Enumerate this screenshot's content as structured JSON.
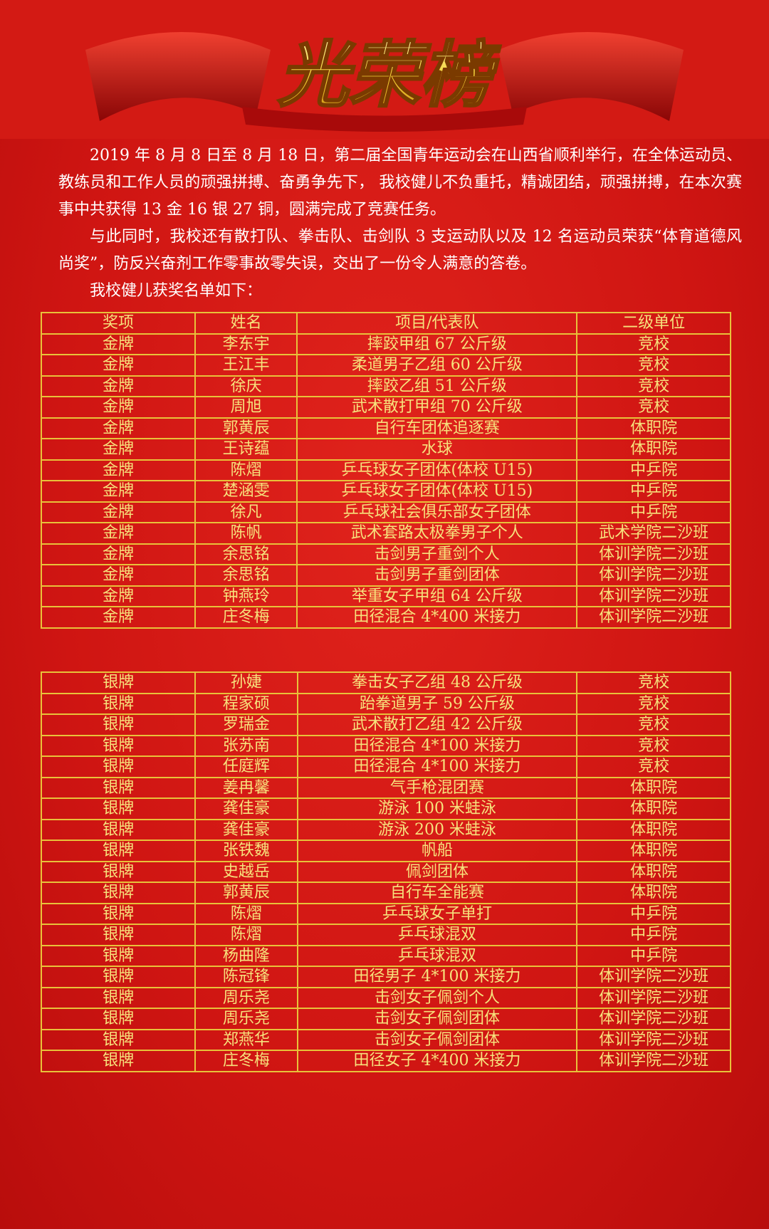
{
  "header": {
    "title": "光荣榜"
  },
  "intro": {
    "paragraphs": [
      "2019 年 8 月 8 日至 8 月 18 日，第二届全国青年运动会在山西省顺利举行，在全体运动员、教练员和工作人员的顽强拼搏、奋勇争先下， 我校健儿不负重托，精诚团结，顽强拼搏，在本次赛事中共获得 13 金 16 银 27 铜，圆满完成了竞赛任务。",
      "与此同时，我校还有散打队、拳击队、击剑队 3 支运动队以及 12 名运动员荣获“体育道德风尚奖”，防反兴奋剂工作零事故零失误，交出了一份令人满意的答卷。",
      "我校健儿获奖名单如下："
    ]
  },
  "gold_table": {
    "columns": [
      "奖项",
      "姓名",
      "项目/代表队",
      "二级单位"
    ],
    "rows": [
      [
        "金牌",
        "李东宇",
        "摔跤甲组 67 公斤级",
        "竞校"
      ],
      [
        "金牌",
        "王江丰",
        "柔道男子乙组 60 公斤级",
        "竞校"
      ],
      [
        "金牌",
        "徐庆",
        "摔跤乙组 51 公斤级",
        "竞校"
      ],
      [
        "金牌",
        "周旭",
        "武术散打甲组 70 公斤级",
        "竞校"
      ],
      [
        "金牌",
        "郭黄辰",
        "自行车团体追逐赛",
        "体职院"
      ],
      [
        "金牌",
        "王诗蕴",
        "水球",
        "体职院"
      ],
      [
        "金牌",
        "陈熠",
        "乒乓球女子团体(体校 U15)",
        "中乒院"
      ],
      [
        "金牌",
        "楚涵雯",
        "乒乓球女子团体(体校 U15)",
        "中乒院"
      ],
      [
        "金牌",
        "徐凡",
        "乒乓球社会俱乐部女子团体",
        "中乒院"
      ],
      [
        "金牌",
        "陈帆",
        "武术套路太极拳男子个人",
        "武术学院二沙班"
      ],
      [
        "金牌",
        "余思铭",
        "击剑男子重剑个人",
        "体训学院二沙班"
      ],
      [
        "金牌",
        "余思铭",
        "击剑男子重剑团体",
        "体训学院二沙班"
      ],
      [
        "金牌",
        "钟燕玲",
        "举重女子甲组 64 公斤级",
        "体训学院二沙班"
      ],
      [
        "金牌",
        "庄冬梅",
        "田径混合 4*400 米接力",
        "体训学院二沙班"
      ]
    ]
  },
  "silver_table": {
    "rows": [
      [
        "银牌",
        "孙婕",
        "拳击女子乙组 48 公斤级",
        "竞校"
      ],
      [
        "银牌",
        "程家硕",
        "跆拳道男子 59 公斤级",
        "竞校"
      ],
      [
        "银牌",
        "罗瑞金",
        "武术散打乙组 42 公斤级",
        "竞校"
      ],
      [
        "银牌",
        "张苏南",
        "田径混合 4*100 米接力",
        "竞校"
      ],
      [
        "银牌",
        "任庭辉",
        "田径混合 4*100 米接力",
        "竞校"
      ],
      [
        "银牌",
        "姜冉馨",
        "气手枪混团赛",
        "体职院"
      ],
      [
        "银牌",
        "龚佳豪",
        "游泳 100 米蛙泳",
        "体职院"
      ],
      [
        "银牌",
        "龚佳豪",
        "游泳 200 米蛙泳",
        "体职院"
      ],
      [
        "银牌",
        "张铁魏",
        "帆船",
        "体职院"
      ],
      [
        "银牌",
        "史越岳",
        "佩剑团体",
        "体职院"
      ],
      [
        "银牌",
        "郭黄辰",
        "自行车全能赛",
        "体职院"
      ],
      [
        "银牌",
        "陈熠",
        "乒乓球女子单打",
        "中乒院"
      ],
      [
        "银牌",
        "陈熠",
        "乒乓球混双",
        "中乒院"
      ],
      [
        "银牌",
        "杨曲隆",
        "乒乓球混双",
        "中乒院"
      ],
      [
        "银牌",
        "陈冠锋",
        "田径男子 4*100 米接力",
        "体训学院二沙班"
      ],
      [
        "银牌",
        "周乐尧",
        "击剑女子佩剑个人",
        "体训学院二沙班"
      ],
      [
        "银牌",
        "周乐尧",
        "击剑女子佩剑团体",
        "体训学院二沙班"
      ],
      [
        "银牌",
        "郑燕华",
        "击剑女子佩剑团体",
        "体训学院二沙班"
      ],
      [
        "银牌",
        "庄冬梅",
        "田径女子 4*400 米接力",
        "体训学院二沙班"
      ]
    ]
  }
}
